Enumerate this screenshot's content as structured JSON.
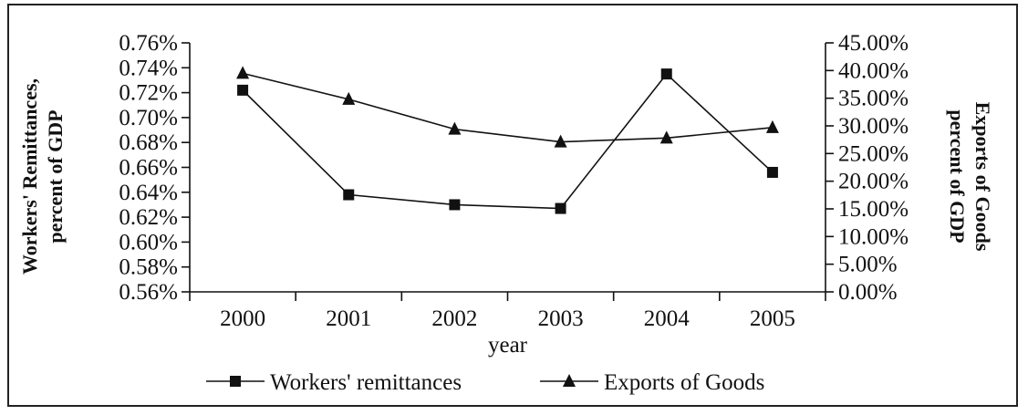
{
  "chart_data": {
    "type": "line",
    "categories": [
      "2000",
      "2001",
      "2002",
      "2003",
      "2004",
      "2005"
    ],
    "xlabel": "year",
    "ylabel_left": [
      "Workers' Remittances,",
      "percent of GDP"
    ],
    "ylabel_right": [
      "Exports of Goods",
      "percent of GDP"
    ],
    "y_left": {
      "lim": [
        0.56,
        0.76
      ],
      "ticks": [
        "0.76%",
        "0.74%",
        "0.72%",
        "0.70%",
        "0.68%",
        "0.66%",
        "0.64%",
        "0.62%",
        "0.60%",
        "0.58%",
        "0.56%"
      ],
      "tick_values": [
        0.76,
        0.74,
        0.72,
        0.7,
        0.68,
        0.66,
        0.64,
        0.62,
        0.6,
        0.58,
        0.56
      ]
    },
    "y_right": {
      "lim": [
        0,
        45
      ],
      "ticks": [
        "45.00%",
        "40.00%",
        "35.00%",
        "30.00%",
        "25.00%",
        "20.00%",
        "15.00%",
        "10.00%",
        "5.00%",
        "0.00%"
      ],
      "tick_values": [
        45,
        40,
        35,
        30,
        25,
        20,
        15,
        10,
        5,
        0
      ]
    },
    "series": [
      {
        "name": "Workers' remittances",
        "axis": "left",
        "marker": "square",
        "values": [
          0.722,
          0.638,
          0.63,
          0.627,
          0.735,
          0.656
        ]
      },
      {
        "name": "Exports of Goods",
        "axis": "right",
        "marker": "triangle",
        "values": [
          39.5,
          34.8,
          29.4,
          27.1,
          27.8,
          29.7
        ]
      }
    ],
    "legend_position": "bottom",
    "grid": false
  }
}
